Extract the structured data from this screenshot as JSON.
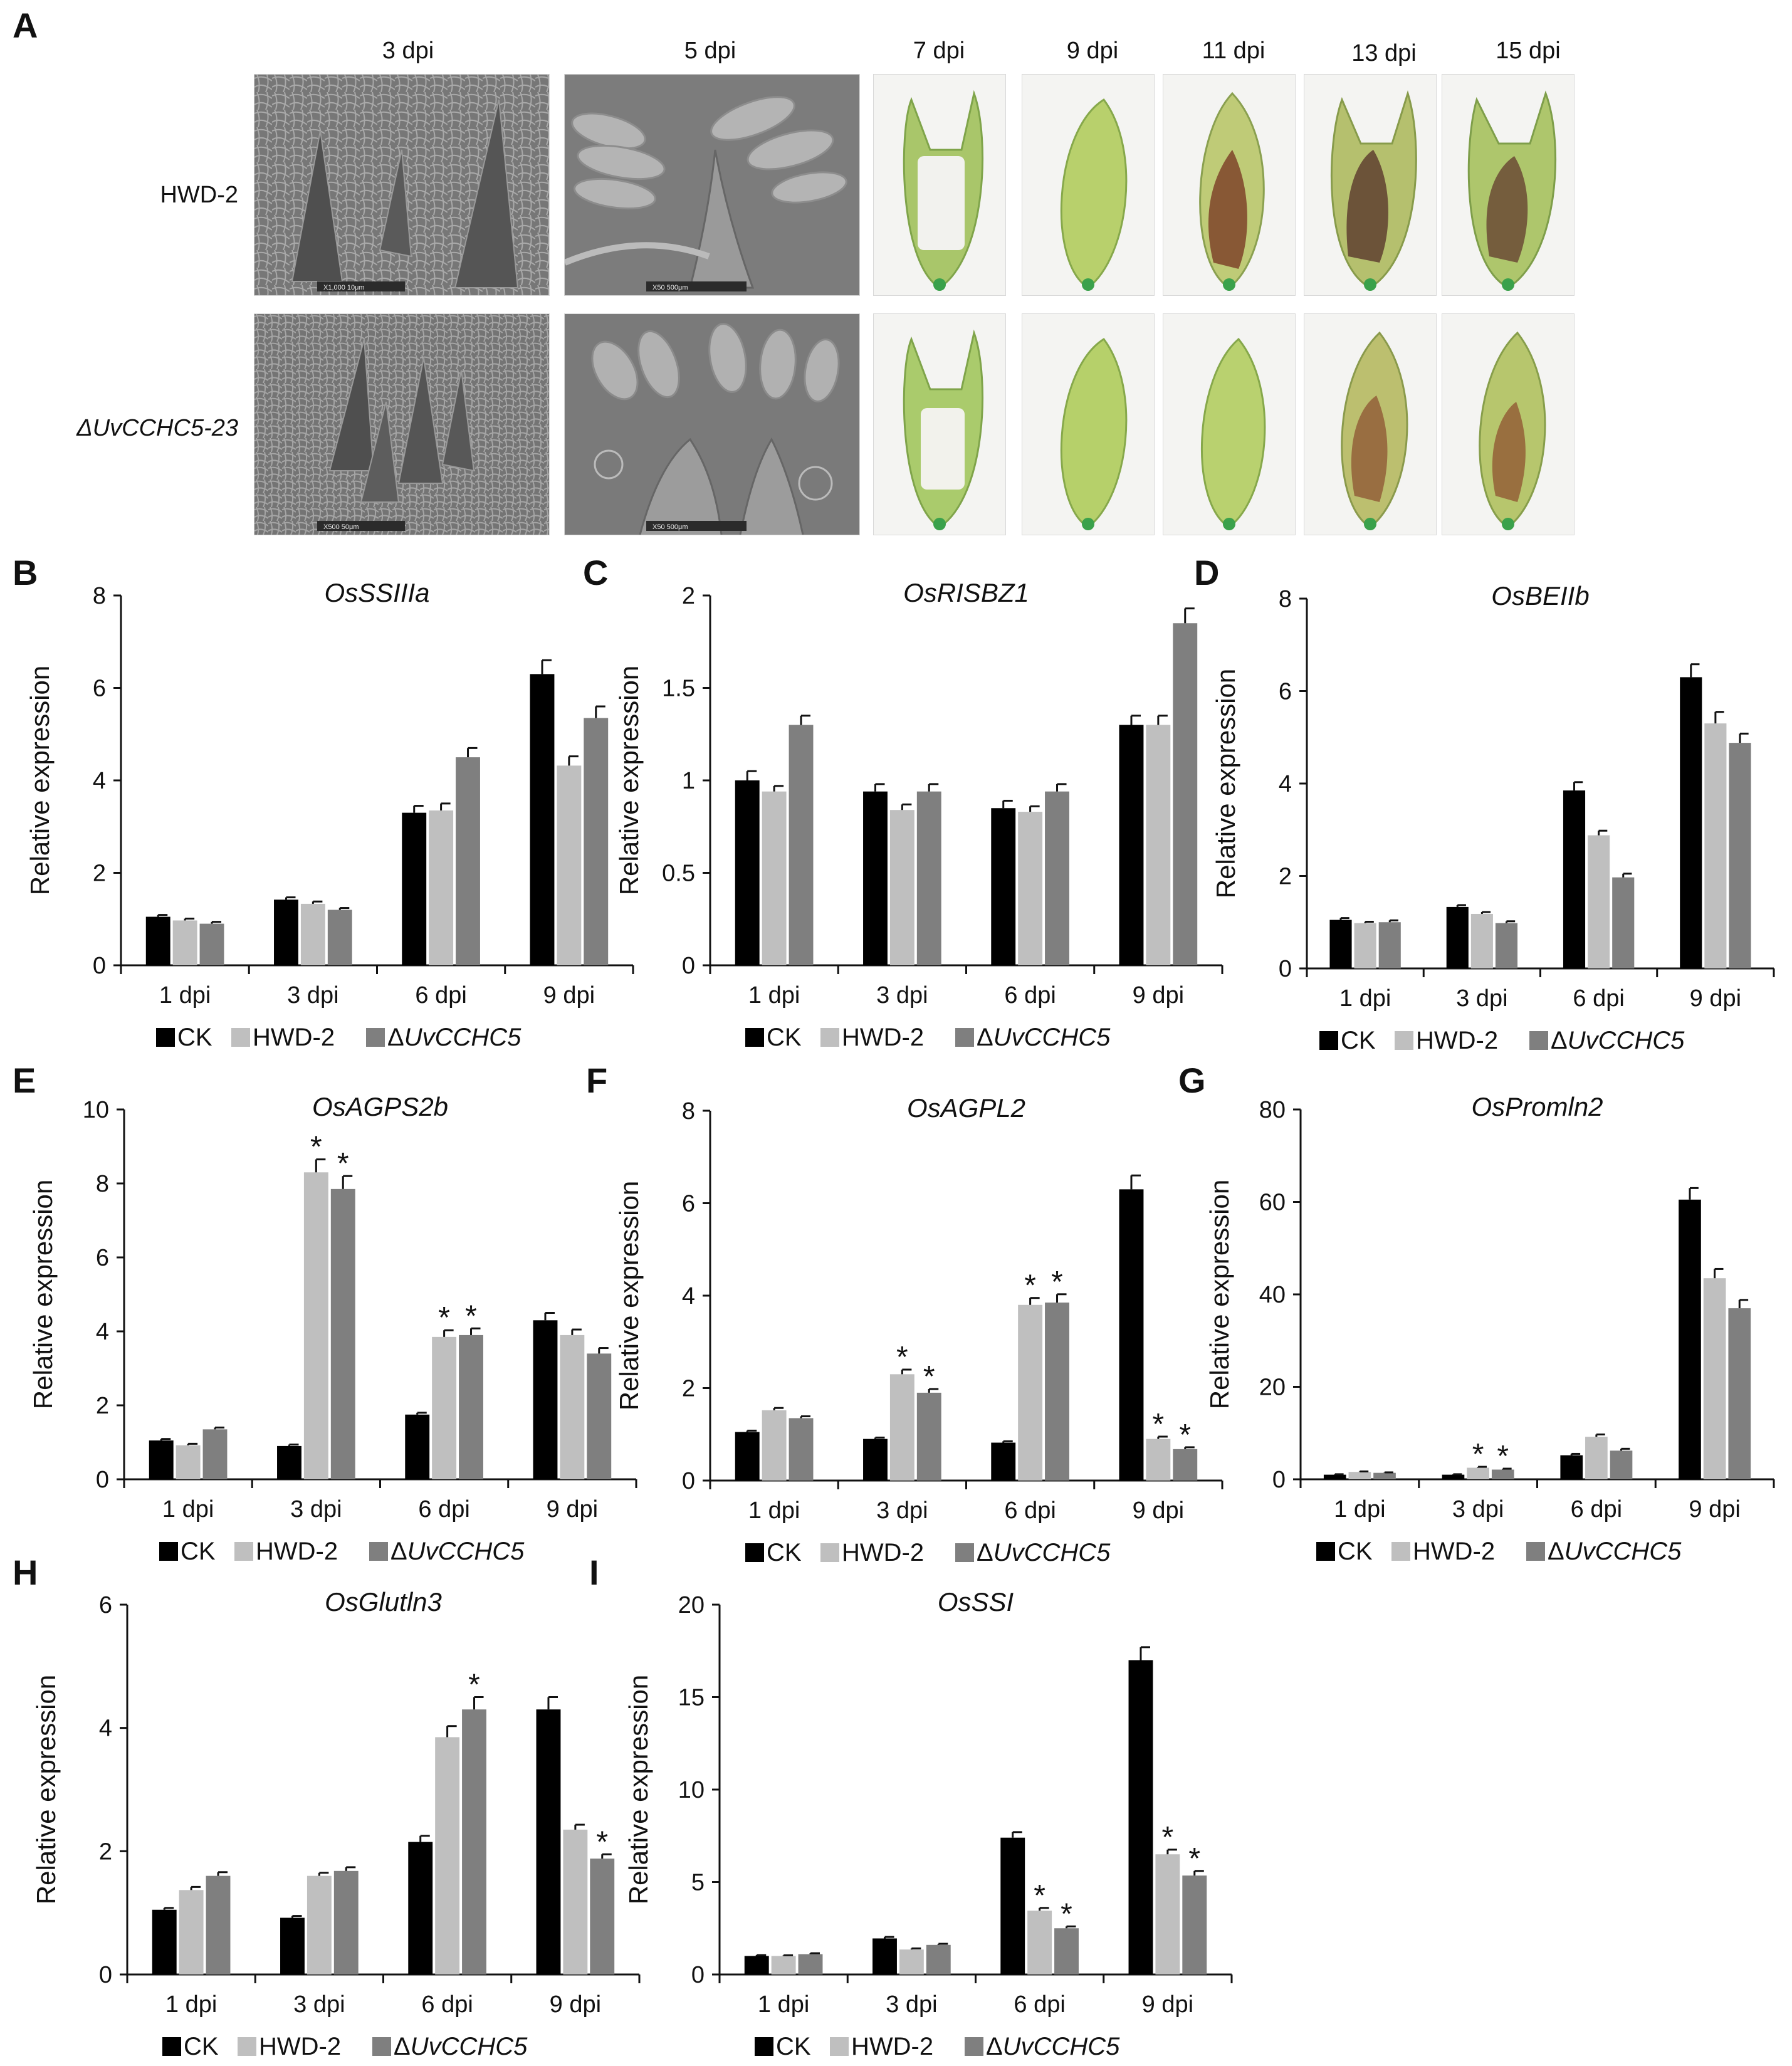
{
  "panel_a": {
    "letter": "A",
    "columns": [
      "3 dpi",
      "5 dpi",
      "7 dpi",
      "9 dpi",
      "11 dpi",
      "13 dpi",
      "15 dpi"
    ],
    "rows": [
      "HWD-2",
      "ΔUvCCHC5-23"
    ],
    "scale_bars": {
      "r0c0": "X1,000   10μm",
      "r0c1": "X50   500μm",
      "r1c0": "X500   50μm",
      "r1c1": "X50   500μm"
    }
  },
  "chart_data": [
    {
      "panel": "B",
      "type": "bar",
      "title": "OsSSIIIa",
      "ylabel": "Relative expression",
      "xlabel": "",
      "ylim": [
        0,
        8
      ],
      "yticks": [
        "0",
        "2",
        "4",
        "6",
        "8"
      ],
      "ytick_values": [
        0,
        2,
        4,
        6,
        8
      ],
      "categories": [
        "1 dpi",
        "3 dpi",
        "6 dpi",
        "9 dpi"
      ],
      "series": [
        {
          "name": "CK",
          "color": "#000000",
          "values": [
            1.05,
            1.42,
            3.3,
            6.3
          ],
          "errors": [
            0.04,
            0.05,
            0.15,
            0.3
          ],
          "stars": [
            false,
            false,
            false,
            false
          ]
        },
        {
          "name": "HWD-2",
          "color": "#bfbfbf",
          "values": [
            0.97,
            1.33,
            3.35,
            4.32
          ],
          "errors": [
            0.04,
            0.05,
            0.15,
            0.2
          ],
          "stars": [
            false,
            false,
            false,
            false
          ]
        },
        {
          "name": "ΔUvCCHC5",
          "color": "#7f7f7f",
          "values": [
            0.9,
            1.2,
            4.5,
            5.35
          ],
          "errors": [
            0.04,
            0.04,
            0.2,
            0.25
          ],
          "stars": [
            false,
            false,
            false,
            false
          ]
        }
      ],
      "legend": [
        "CK",
        "HWD-2",
        "ΔUvCCHC5"
      ]
    },
    {
      "panel": "C",
      "type": "bar",
      "title": "OsRISBZ1",
      "ylabel": "Relative expression",
      "xlabel": "",
      "ylim": [
        0,
        2
      ],
      "yticks": [
        "0",
        "0.5",
        "1",
        "1.5",
        "2"
      ],
      "ytick_values": [
        0,
        0.5,
        1,
        1.5,
        2
      ],
      "categories": [
        "1 dpi",
        "3 dpi",
        "6 dpi",
        "9 dpi"
      ],
      "series": [
        {
          "name": "CK",
          "color": "#000000",
          "values": [
            1.0,
            0.94,
            0.85,
            1.3
          ],
          "errors": [
            0.05,
            0.04,
            0.04,
            0.05
          ],
          "stars": [
            false,
            false,
            false,
            false
          ]
        },
        {
          "name": "HWD-2",
          "color": "#bfbfbf",
          "values": [
            0.94,
            0.84,
            0.83,
            1.3
          ],
          "errors": [
            0.03,
            0.03,
            0.03,
            0.05
          ],
          "stars": [
            false,
            false,
            false,
            false
          ]
        },
        {
          "name": "ΔUvCCHC5",
          "color": "#7f7f7f",
          "values": [
            1.3,
            0.94,
            0.94,
            1.85
          ],
          "errors": [
            0.05,
            0.04,
            0.04,
            0.08
          ],
          "stars": [
            false,
            false,
            false,
            false
          ]
        }
      ],
      "legend": [
        "CK",
        "HWD-2",
        "ΔUvCCHC5"
      ]
    },
    {
      "panel": "D",
      "type": "bar",
      "title": "OsBEIIb",
      "ylabel": "Relative expression",
      "xlabel": "",
      "ylim": [
        0,
        8
      ],
      "yticks": [
        "0",
        "2",
        "4",
        "6",
        "8"
      ],
      "ytick_values": [
        0,
        2,
        4,
        6,
        8
      ],
      "categories": [
        "1 dpi",
        "3 dpi",
        "6 dpi",
        "9 dpi"
      ],
      "series": [
        {
          "name": "CK",
          "color": "#000000",
          "values": [
            1.05,
            1.33,
            3.85,
            6.3
          ],
          "errors": [
            0.04,
            0.04,
            0.18,
            0.28
          ],
          "stars": [
            false,
            false,
            false,
            false
          ]
        },
        {
          "name": "HWD-2",
          "color": "#bfbfbf",
          "values": [
            0.98,
            1.18,
            2.88,
            5.3
          ],
          "errors": [
            0.03,
            0.04,
            0.1,
            0.25
          ],
          "stars": [
            false,
            false,
            false,
            false
          ]
        },
        {
          "name": "ΔUvCCHC5",
          "color": "#7f7f7f",
          "values": [
            1.0,
            0.98,
            1.97,
            4.88
          ],
          "errors": [
            0.04,
            0.04,
            0.08,
            0.2
          ],
          "stars": [
            false,
            false,
            false,
            false
          ]
        }
      ],
      "legend": [
        "CK",
        "HWD-2",
        "ΔUvCCHC5"
      ]
    },
    {
      "panel": "E",
      "type": "bar",
      "title": "OsAGPS2b",
      "ylabel": "Relative expression",
      "xlabel": "",
      "ylim": [
        0,
        10
      ],
      "yticks": [
        "0",
        "2",
        "4",
        "6",
        "8",
        "10"
      ],
      "ytick_values": [
        0,
        2,
        4,
        6,
        8,
        10
      ],
      "categories": [
        "1 dpi",
        "3 dpi",
        "6 dpi",
        "9 dpi"
      ],
      "series": [
        {
          "name": "CK",
          "color": "#000000",
          "values": [
            1.05,
            0.9,
            1.75,
            4.3
          ],
          "errors": [
            0.04,
            0.04,
            0.05,
            0.2
          ],
          "stars": [
            false,
            false,
            false,
            false
          ]
        },
        {
          "name": "HWD-2",
          "color": "#bfbfbf",
          "values": [
            0.92,
            8.3,
            3.85,
            3.9
          ],
          "errors": [
            0.04,
            0.35,
            0.18,
            0.15
          ],
          "stars": [
            false,
            true,
            true,
            false
          ]
        },
        {
          "name": "ΔUvCCHC5",
          "color": "#7f7f7f",
          "values": [
            1.35,
            7.85,
            3.9,
            3.4
          ],
          "errors": [
            0.05,
            0.35,
            0.18,
            0.15
          ],
          "stars": [
            false,
            true,
            true,
            false
          ]
        }
      ],
      "legend": [
        "CK",
        "HWD-2",
        "ΔUvCCHC5"
      ]
    },
    {
      "panel": "F",
      "type": "bar",
      "title": "OsAGPL2",
      "ylabel": "Relative expression",
      "xlabel": "",
      "ylim": [
        0,
        8
      ],
      "yticks": [
        "0",
        "2",
        "4",
        "6",
        "8"
      ],
      "ytick_values": [
        0,
        2,
        4,
        6,
        8
      ],
      "categories": [
        "1 dpi",
        "3 dpi",
        "6 dpi",
        "9 dpi"
      ],
      "series": [
        {
          "name": "CK",
          "color": "#000000",
          "values": [
            1.05,
            0.9,
            0.82,
            6.3
          ],
          "errors": [
            0.03,
            0.03,
            0.03,
            0.3
          ],
          "stars": [
            false,
            false,
            false,
            false
          ]
        },
        {
          "name": "HWD-2",
          "color": "#bfbfbf",
          "values": [
            1.52,
            2.3,
            3.8,
            0.9
          ],
          "errors": [
            0.05,
            0.1,
            0.15,
            0.05
          ],
          "stars": [
            false,
            true,
            true,
            true
          ]
        },
        {
          "name": "ΔUvCCHC5",
          "color": "#7f7f7f",
          "values": [
            1.35,
            1.9,
            3.85,
            0.68
          ],
          "errors": [
            0.04,
            0.08,
            0.18,
            0.04
          ],
          "stars": [
            false,
            true,
            true,
            true
          ]
        }
      ],
      "legend": [
        "CK",
        "HWD-2",
        "ΔUvCCHC5"
      ]
    },
    {
      "panel": "G",
      "type": "bar",
      "title": "OsPromln2",
      "ylabel": "Relative expression",
      "xlabel": "",
      "ylim": [
        0,
        80
      ],
      "yticks": [
        "0",
        "20",
        "40",
        "60",
        "80"
      ],
      "ytick_values": [
        0,
        20,
        40,
        60,
        80
      ],
      "categories": [
        "1 dpi",
        "3 dpi",
        "6 dpi",
        "9 dpi"
      ],
      "series": [
        {
          "name": "CK",
          "color": "#000000",
          "values": [
            1.0,
            1.0,
            5.2,
            60.5
          ],
          "errors": [
            0.1,
            0.1,
            0.3,
            2.5
          ],
          "stars": [
            false,
            false,
            false,
            false
          ]
        },
        {
          "name": "HWD-2",
          "color": "#bfbfbf",
          "values": [
            1.6,
            2.5,
            9.2,
            43.5
          ],
          "errors": [
            0.1,
            0.2,
            0.5,
            2.0
          ],
          "stars": [
            false,
            true,
            false,
            false
          ]
        },
        {
          "name": "ΔUvCCHC5",
          "color": "#7f7f7f",
          "values": [
            1.4,
            2.1,
            6.2,
            37.0
          ],
          "errors": [
            0.1,
            0.2,
            0.4,
            1.8
          ],
          "stars": [
            false,
            true,
            false,
            false
          ]
        }
      ],
      "legend": [
        "CK",
        "HWD-2",
        "ΔUvCCHC5"
      ]
    },
    {
      "panel": "H",
      "type": "bar",
      "title": "OsGlutln3",
      "ylabel": "Relative expression",
      "xlabel": "",
      "ylim": [
        0,
        6
      ],
      "yticks": [
        "0",
        "2",
        "4",
        "6"
      ],
      "ytick_values": [
        0,
        2,
        4,
        6
      ],
      "categories": [
        "1 dpi",
        "3 dpi",
        "6 dpi",
        "9 dpi"
      ],
      "series": [
        {
          "name": "CK",
          "color": "#000000",
          "values": [
            1.05,
            0.92,
            2.15,
            4.3
          ],
          "errors": [
            0.03,
            0.03,
            0.1,
            0.2
          ],
          "stars": [
            false,
            false,
            false,
            false
          ]
        },
        {
          "name": "HWD-2",
          "color": "#bfbfbf",
          "values": [
            1.37,
            1.6,
            3.85,
            2.35
          ],
          "errors": [
            0.05,
            0.05,
            0.18,
            0.08
          ],
          "stars": [
            false,
            false,
            false,
            false
          ]
        },
        {
          "name": "ΔUvCCHC5",
          "color": "#7f7f7f",
          "values": [
            1.6,
            1.68,
            4.3,
            1.88
          ],
          "errors": [
            0.06,
            0.06,
            0.2,
            0.07
          ],
          "stars": [
            false,
            false,
            true,
            true
          ]
        }
      ],
      "legend": [
        "CK",
        "HWD-2",
        "ΔUvCCHC5"
      ]
    },
    {
      "panel": "I",
      "type": "bar",
      "title": "OsSSI",
      "ylabel": "Relative expression",
      "xlabel": "",
      "ylim": [
        0,
        20
      ],
      "yticks": [
        "0",
        "5",
        "10",
        "15",
        "20"
      ],
      "ytick_values": [
        0,
        5,
        10,
        15,
        20
      ],
      "categories": [
        "1 dpi",
        "3 dpi",
        "6 dpi",
        "9 dpi"
      ],
      "series": [
        {
          "name": "CK",
          "color": "#000000",
          "values": [
            1.0,
            1.95,
            7.4,
            17.0
          ],
          "errors": [
            0.05,
            0.08,
            0.3,
            0.7
          ],
          "stars": [
            false,
            false,
            false,
            false
          ]
        },
        {
          "name": "HWD-2",
          "color": "#bfbfbf",
          "values": [
            1.0,
            1.35,
            3.45,
            6.5
          ],
          "errors": [
            0.04,
            0.06,
            0.15,
            0.25
          ],
          "stars": [
            false,
            false,
            true,
            true
          ]
        },
        {
          "name": "ΔUvCCHC5",
          "color": "#7f7f7f",
          "values": [
            1.1,
            1.6,
            2.5,
            5.35
          ],
          "errors": [
            0.05,
            0.06,
            0.1,
            0.25
          ],
          "stars": [
            false,
            false,
            true,
            true
          ]
        }
      ],
      "legend": [
        "CK",
        "HWD-2",
        "ΔUvCCHC5"
      ]
    }
  ]
}
